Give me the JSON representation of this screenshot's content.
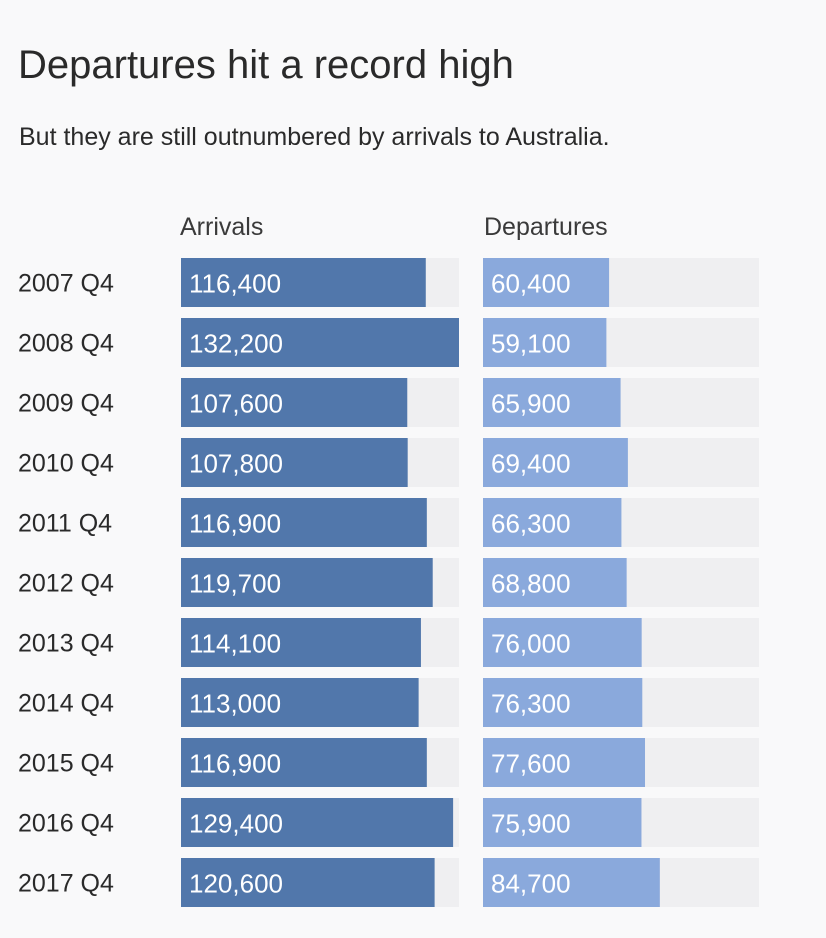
{
  "header": {
    "title": "Departures hit a record high",
    "subtitle": "But they are still outnumbered by arrivals to Australia."
  },
  "colors": {
    "arrivals": "#5177ab",
    "departures": "#8aa9dc",
    "track": "#efeff1",
    "background": "#f9f9fa"
  },
  "chart_data": {
    "type": "bar",
    "orientation": "horizontal",
    "title": "Departures hit a record high",
    "subtitle": "But they are still outnumbered by arrivals to Australia.",
    "categories": [
      "2007 Q4",
      "2008 Q4",
      "2009 Q4",
      "2010 Q4",
      "2011 Q4",
      "2012 Q4",
      "2013 Q4",
      "2014 Q4",
      "2015 Q4",
      "2016 Q4",
      "2017 Q4"
    ],
    "series": [
      {
        "name": "Arrivals",
        "values": [
          116400,
          132200,
          107600,
          107800,
          116900,
          119700,
          114100,
          113000,
          116900,
          129400,
          120600
        ],
        "labels": [
          "116,400",
          "132,200",
          "107,600",
          "107,800",
          "116,900",
          "119,700",
          "114,100",
          "113,000",
          "116,900",
          "129,400",
          "120,600"
        ]
      },
      {
        "name": "Departures",
        "values": [
          60400,
          59100,
          65900,
          69400,
          66300,
          68800,
          76000,
          76300,
          77600,
          75900,
          84700
        ],
        "labels": [
          "60,400",
          "59,100",
          "65,900",
          "69,400",
          "66,300",
          "68,800",
          "76,000",
          "76,300",
          "77,600",
          "75,900",
          "84,700"
        ]
      }
    ],
    "xlim": [
      0,
      132200
    ],
    "grid": false,
    "legend": "none"
  }
}
